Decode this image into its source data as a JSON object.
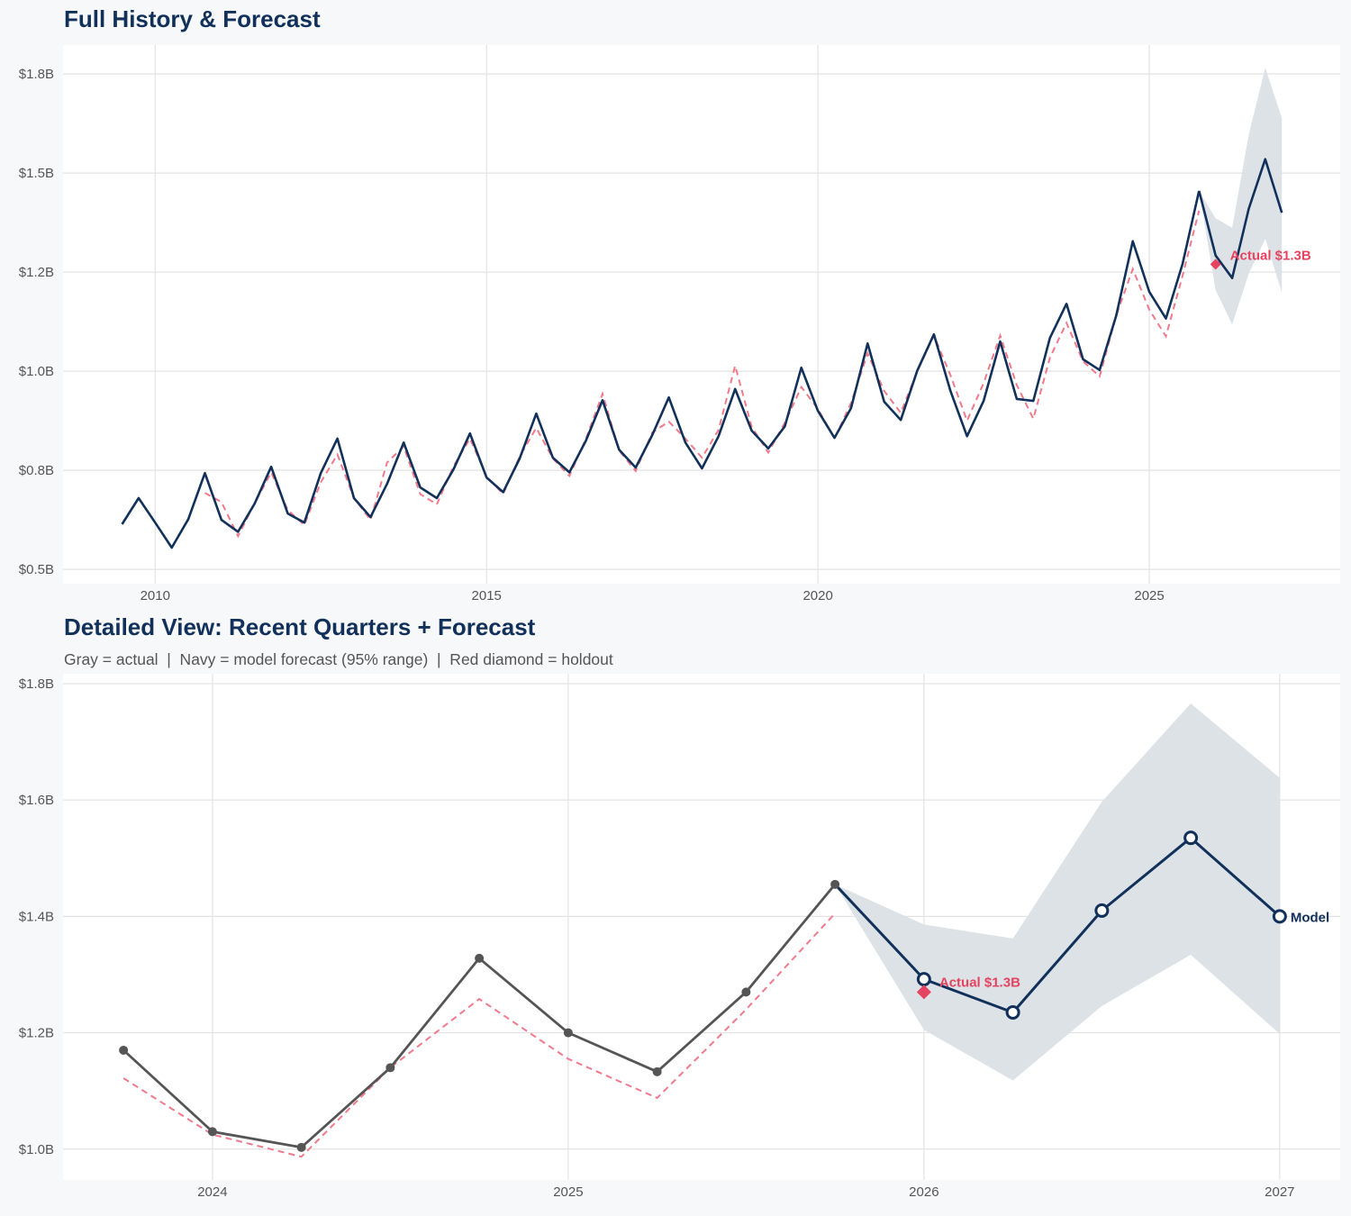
{
  "colors": {
    "navy": "#12315a",
    "gray": "#555555",
    "red": "#e5435f",
    "fitted": "#f07a8c",
    "band": "#dbe0e6",
    "grid": "#e3e3e3"
  },
  "chart_data": [
    {
      "type": "line",
      "title": "Full History & Forecast",
      "xlim": [
        2008.61,
        2027.88
      ],
      "ylim": [
        0.464,
        1.823
      ],
      "grid": true,
      "x_ticks": [
        2010,
        2015,
        2020,
        2025
      ],
      "x_tick_labels": [
        "2010",
        "2015",
        "2020",
        "2025"
      ],
      "y_ticks": [
        0.5,
        0.75,
        1.0,
        1.25,
        1.5,
        1.75
      ],
      "y_tick_labels": [
        "$0.5B",
        "$0.8B",
        "$1.0B",
        "$1.2B",
        "$1.5B",
        "$1.8B"
      ],
      "annotation": "Actual $1.3B"
    },
    {
      "type": "line",
      "title": "Detailed View: Recent Quarters + Forecast",
      "subtitle": "Gray = actual  |  Navy = model forecast (95% range)  |  Red diamond = holdout",
      "xlim": [
        2023.58,
        2027.17
      ],
      "ylim": [
        0.947,
        1.817
      ],
      "grid": true,
      "x_ticks": [
        2024,
        2025,
        2026,
        2027
      ],
      "x_tick_labels": [
        "2024",
        "2025",
        "2026",
        "2027"
      ],
      "y_ticks": [
        1.0,
        1.2,
        1.4,
        1.6,
        1.8
      ],
      "y_tick_labels": [
        "$1.0B",
        "$1.2B",
        "$1.4B",
        "$1.6B",
        "$1.8B"
      ],
      "annotation": "Actual $1.3B",
      "end_label": "Model",
      "x_start": 2023.75
    }
  ],
  "series": {
    "actual": {
      "x_start": 2009.5,
      "x_step": 0.25,
      "values": [
        0.614,
        0.68,
        0.618,
        0.555,
        0.627,
        0.743,
        0.625,
        0.595,
        0.666,
        0.759,
        0.641,
        0.618,
        0.743,
        0.83,
        0.68,
        0.632,
        0.716,
        0.82,
        0.707,
        0.68,
        0.752,
        0.843,
        0.732,
        0.695,
        0.78,
        0.893,
        0.782,
        0.745,
        0.825,
        0.927,
        0.802,
        0.757,
        0.839,
        0.934,
        0.82,
        0.755,
        0.836,
        0.955,
        0.85,
        0.805,
        0.861,
        1.009,
        0.9,
        0.832,
        0.907,
        1.07,
        0.923,
        0.877,
        1.002,
        1.093,
        0.95,
        0.836,
        0.925,
        1.075,
        0.93,
        0.925,
        1.084,
        1.17,
        1.03,
        1.003,
        1.14,
        1.328,
        1.2,
        1.133,
        1.27,
        1.455
      ]
    },
    "fitted": {
      "x_start": 2010.75,
      "x_step": 0.25,
      "values": [
        0.693,
        0.67,
        0.584,
        0.666,
        0.745,
        0.65,
        0.612,
        0.72,
        0.79,
        0.68,
        0.625,
        0.77,
        0.81,
        0.69,
        0.664,
        0.76,
        0.83,
        0.735,
        0.69,
        0.785,
        0.857,
        0.78,
        0.736,
        0.83,
        0.943,
        0.8,
        0.748,
        0.845,
        0.873,
        0.83,
        0.782,
        0.852,
        1.014,
        0.86,
        0.795,
        0.87,
        0.96,
        0.905,
        0.83,
        0.92,
        1.045,
        0.95,
        0.895,
        1.0,
        1.09,
        0.99,
        0.875,
        0.97,
        1.09,
        0.965,
        0.88,
        1.034,
        1.122,
        1.025,
        0.987,
        1.14,
        1.258,
        1.155,
        1.088,
        1.24,
        1.405
      ]
    },
    "forecast": {
      "x": [
        2025.75,
        2026.0,
        2026.25,
        2026.5,
        2026.75,
        2027.0
      ],
      "values": [
        1.455,
        1.292,
        1.235,
        1.41,
        1.535,
        1.4
      ],
      "lower": [
        1.455,
        1.205,
        1.118,
        1.246,
        1.334,
        1.198
      ],
      "upper": [
        1.455,
        1.386,
        1.362,
        1.597,
        1.766,
        1.638
      ]
    },
    "holdout": {
      "x": 2026.0,
      "value": 1.27
    }
  }
}
